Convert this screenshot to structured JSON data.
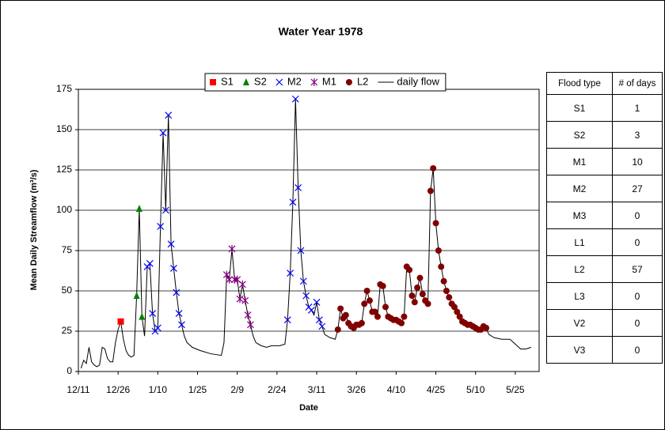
{
  "chart_data": {
    "type": "line",
    "title": "Water Year 1978",
    "x_label": "Date",
    "y_label": "Mean Daily Streamflow (m³/s)",
    "xlim": [
      "12/11",
      "6/3"
    ],
    "xticks": [
      "12/11",
      "12/26",
      "1/10",
      "1/25",
      "2/9",
      "2/24",
      "3/11",
      "3/26",
      "4/10",
      "4/25",
      "5/10",
      "5/25"
    ],
    "ylim": [
      0,
      175
    ],
    "yticks": [
      0,
      25,
      50,
      75,
      100,
      125,
      150,
      175
    ],
    "grid": true,
    "legend": "top",
    "series": [
      {
        "name": "S1",
        "color": "#ff0000",
        "marker": "square",
        "x": [
          "12/27"
        ],
        "values": [
          31
        ]
      },
      {
        "name": "S2",
        "color": "#008000",
        "marker": "triangle",
        "x": [
          "1/2",
          "1/3",
          "1/4"
        ],
        "values": [
          47,
          101,
          34
        ]
      },
      {
        "name": "M2",
        "color": "#0000ff",
        "marker": "x",
        "x": [
          "1/6",
          "1/7",
          "1/8",
          "1/9",
          "1/10",
          "1/11",
          "1/12",
          "1/13",
          "1/14",
          "1/15",
          "1/16",
          "1/17",
          "1/18",
          "1/19",
          "2/28",
          "3/1",
          "3/2",
          "3/3",
          "3/4",
          "3/5",
          "3/6",
          "3/7",
          "3/8",
          "3/9",
          "3/11",
          "3/12",
          "3/13"
        ],
        "values": [
          65,
          67,
          36,
          25,
          27,
          90,
          148,
          100,
          159,
          79,
          64,
          49,
          36,
          29,
          32,
          61,
          105,
          169,
          114,
          75,
          56,
          47,
          40,
          38,
          43,
          32,
          28
        ]
      },
      {
        "name": "M1",
        "color": "#800080",
        "marker": "star",
        "x": [
          "2/5",
          "2/6",
          "2/7",
          "2/8",
          "2/9",
          "2/10",
          "2/11",
          "2/12",
          "2/13",
          "2/14"
        ],
        "values": [
          60,
          57,
          76,
          57,
          57,
          45,
          54,
          44,
          35,
          29
        ]
      },
      {
        "name": "L2",
        "color": "#800000",
        "marker": "circle",
        "x": [
          "3/19",
          "3/20",
          "3/21",
          "3/22",
          "3/23",
          "3/24",
          "3/25",
          "3/26",
          "3/27",
          "3/28",
          "3/29",
          "3/30",
          "3/31",
          "4/1",
          "4/2",
          "4/3",
          "4/4",
          "4/5",
          "4/6",
          "4/7",
          "4/8",
          "4/9",
          "4/10",
          "4/11",
          "4/12",
          "4/13",
          "4/14",
          "4/15",
          "4/16",
          "4/17",
          "4/18",
          "4/19",
          "4/20",
          "4/21",
          "4/22",
          "4/23",
          "4/24",
          "4/25",
          "4/26",
          "4/27",
          "4/28",
          "4/29",
          "4/30",
          "5/1",
          "5/2",
          "5/3",
          "5/4",
          "5/5",
          "5/6",
          "5/7",
          "5/8",
          "5/9",
          "5/10",
          "5/11",
          "5/12",
          "5/13",
          "5/14"
        ],
        "values": [
          26,
          39,
          33,
          35,
          30,
          28,
          27,
          29,
          29,
          30,
          42,
          50,
          44,
          37,
          37,
          34,
          54,
          53,
          40,
          34,
          33,
          32,
          32,
          31,
          30,
          34,
          65,
          63,
          47,
          43,
          52,
          58,
          48,
          44,
          42,
          112,
          126,
          92,
          75,
          65,
          56,
          50,
          46,
          42,
          40,
          37,
          34,
          31,
          30,
          29,
          29,
          28,
          27,
          26,
          26,
          28,
          27
        ]
      },
      {
        "name": "daily flow",
        "color": "#000000",
        "marker": "none",
        "x": [
          "12/12",
          "12/13",
          "12/14",
          "12/15",
          "12/16",
          "12/17",
          "12/18",
          "12/19",
          "12/20",
          "12/21",
          "12/22",
          "12/23",
          "12/24",
          "12/25",
          "12/26",
          "12/27",
          "12/28",
          "12/29",
          "12/30",
          "12/31",
          "1/1",
          "1/2",
          "1/3",
          "1/4",
          "1/5",
          "1/6",
          "1/7",
          "1/8",
          "1/9",
          "1/10",
          "1/11",
          "1/12",
          "1/13",
          "1/14",
          "1/15",
          "1/16",
          "1/17",
          "1/18",
          "1/19",
          "1/20",
          "1/21",
          "1/23",
          "1/26",
          "1/30",
          "2/3",
          "2/4",
          "2/5",
          "2/6",
          "2/7",
          "2/8",
          "2/9",
          "2/10",
          "2/11",
          "2/12",
          "2/13",
          "2/14",
          "2/15",
          "2/16",
          "2/18",
          "2/20",
          "2/22",
          "2/25",
          "2/27",
          "2/28",
          "3/1",
          "3/2",
          "3/3",
          "3/4",
          "3/5",
          "3/6",
          "3/7",
          "3/8",
          "3/9",
          "3/10",
          "3/11",
          "3/12",
          "3/13",
          "3/14",
          "3/16",
          "3/18",
          "3/19",
          "3/20",
          "3/21",
          "3/22",
          "3/23",
          "3/24",
          "3/25",
          "3/26",
          "3/27",
          "3/28",
          "3/29",
          "3/30",
          "3/31",
          "4/1",
          "4/2",
          "4/3",
          "4/4",
          "4/5",
          "4/6",
          "4/7",
          "4/8",
          "4/9",
          "4/10",
          "4/11",
          "4/12",
          "4/13",
          "4/14",
          "4/15",
          "4/16",
          "4/17",
          "4/18",
          "4/19",
          "4/20",
          "4/21",
          "4/22",
          "4/23",
          "4/24",
          "4/25",
          "4/26",
          "4/27",
          "4/28",
          "4/29",
          "4/30",
          "5/1",
          "5/2",
          "5/3",
          "5/4",
          "5/5",
          "5/6",
          "5/7",
          "5/8",
          "5/9",
          "5/10",
          "5/11",
          "5/12",
          "5/13",
          "5/14",
          "5/15",
          "5/17",
          "5/20",
          "5/23",
          "5/25",
          "5/27",
          "5/29",
          "5/31"
        ],
        "values": [
          2,
          7,
          5,
          15,
          6,
          4,
          3,
          4,
          15,
          14,
          8,
          6,
          6,
          18,
          26,
          31,
          20,
          13,
          10,
          9,
          10,
          47,
          101,
          34,
          22,
          65,
          67,
          36,
          25,
          27,
          90,
          148,
          100,
          159,
          79,
          64,
          49,
          36,
          29,
          22,
          18,
          15,
          13,
          11,
          10,
          18,
          60,
          57,
          76,
          57,
          57,
          45,
          54,
          44,
          35,
          29,
          22,
          18,
          16,
          15,
          16,
          16,
          17,
          32,
          61,
          105,
          169,
          114,
          75,
          56,
          47,
          40,
          38,
          35,
          43,
          32,
          28,
          23,
          21,
          20,
          26,
          39,
          33,
          35,
          30,
          28,
          27,
          29,
          29,
          30,
          42,
          50,
          44,
          37,
          37,
          34,
          54,
          53,
          40,
          34,
          33,
          32,
          32,
          31,
          30,
          34,
          65,
          63,
          47,
          43,
          52,
          58,
          48,
          44,
          42,
          112,
          126,
          92,
          75,
          65,
          56,
          50,
          46,
          42,
          40,
          37,
          34,
          31,
          30,
          29,
          29,
          28,
          27,
          26,
          26,
          28,
          27,
          23,
          21,
          20,
          20,
          17,
          14,
          14,
          15
        ]
      }
    ]
  },
  "table": {
    "header": [
      "Flood type",
      "# of days"
    ],
    "rows": [
      [
        "S1",
        1
      ],
      [
        "S2",
        3
      ],
      [
        "M1",
        10
      ],
      [
        "M2",
        27
      ],
      [
        "M3",
        0
      ],
      [
        "L1",
        0
      ],
      [
        "L2",
        57
      ],
      [
        "L3",
        0
      ],
      [
        "V2",
        0
      ],
      [
        "V3",
        0
      ]
    ]
  }
}
